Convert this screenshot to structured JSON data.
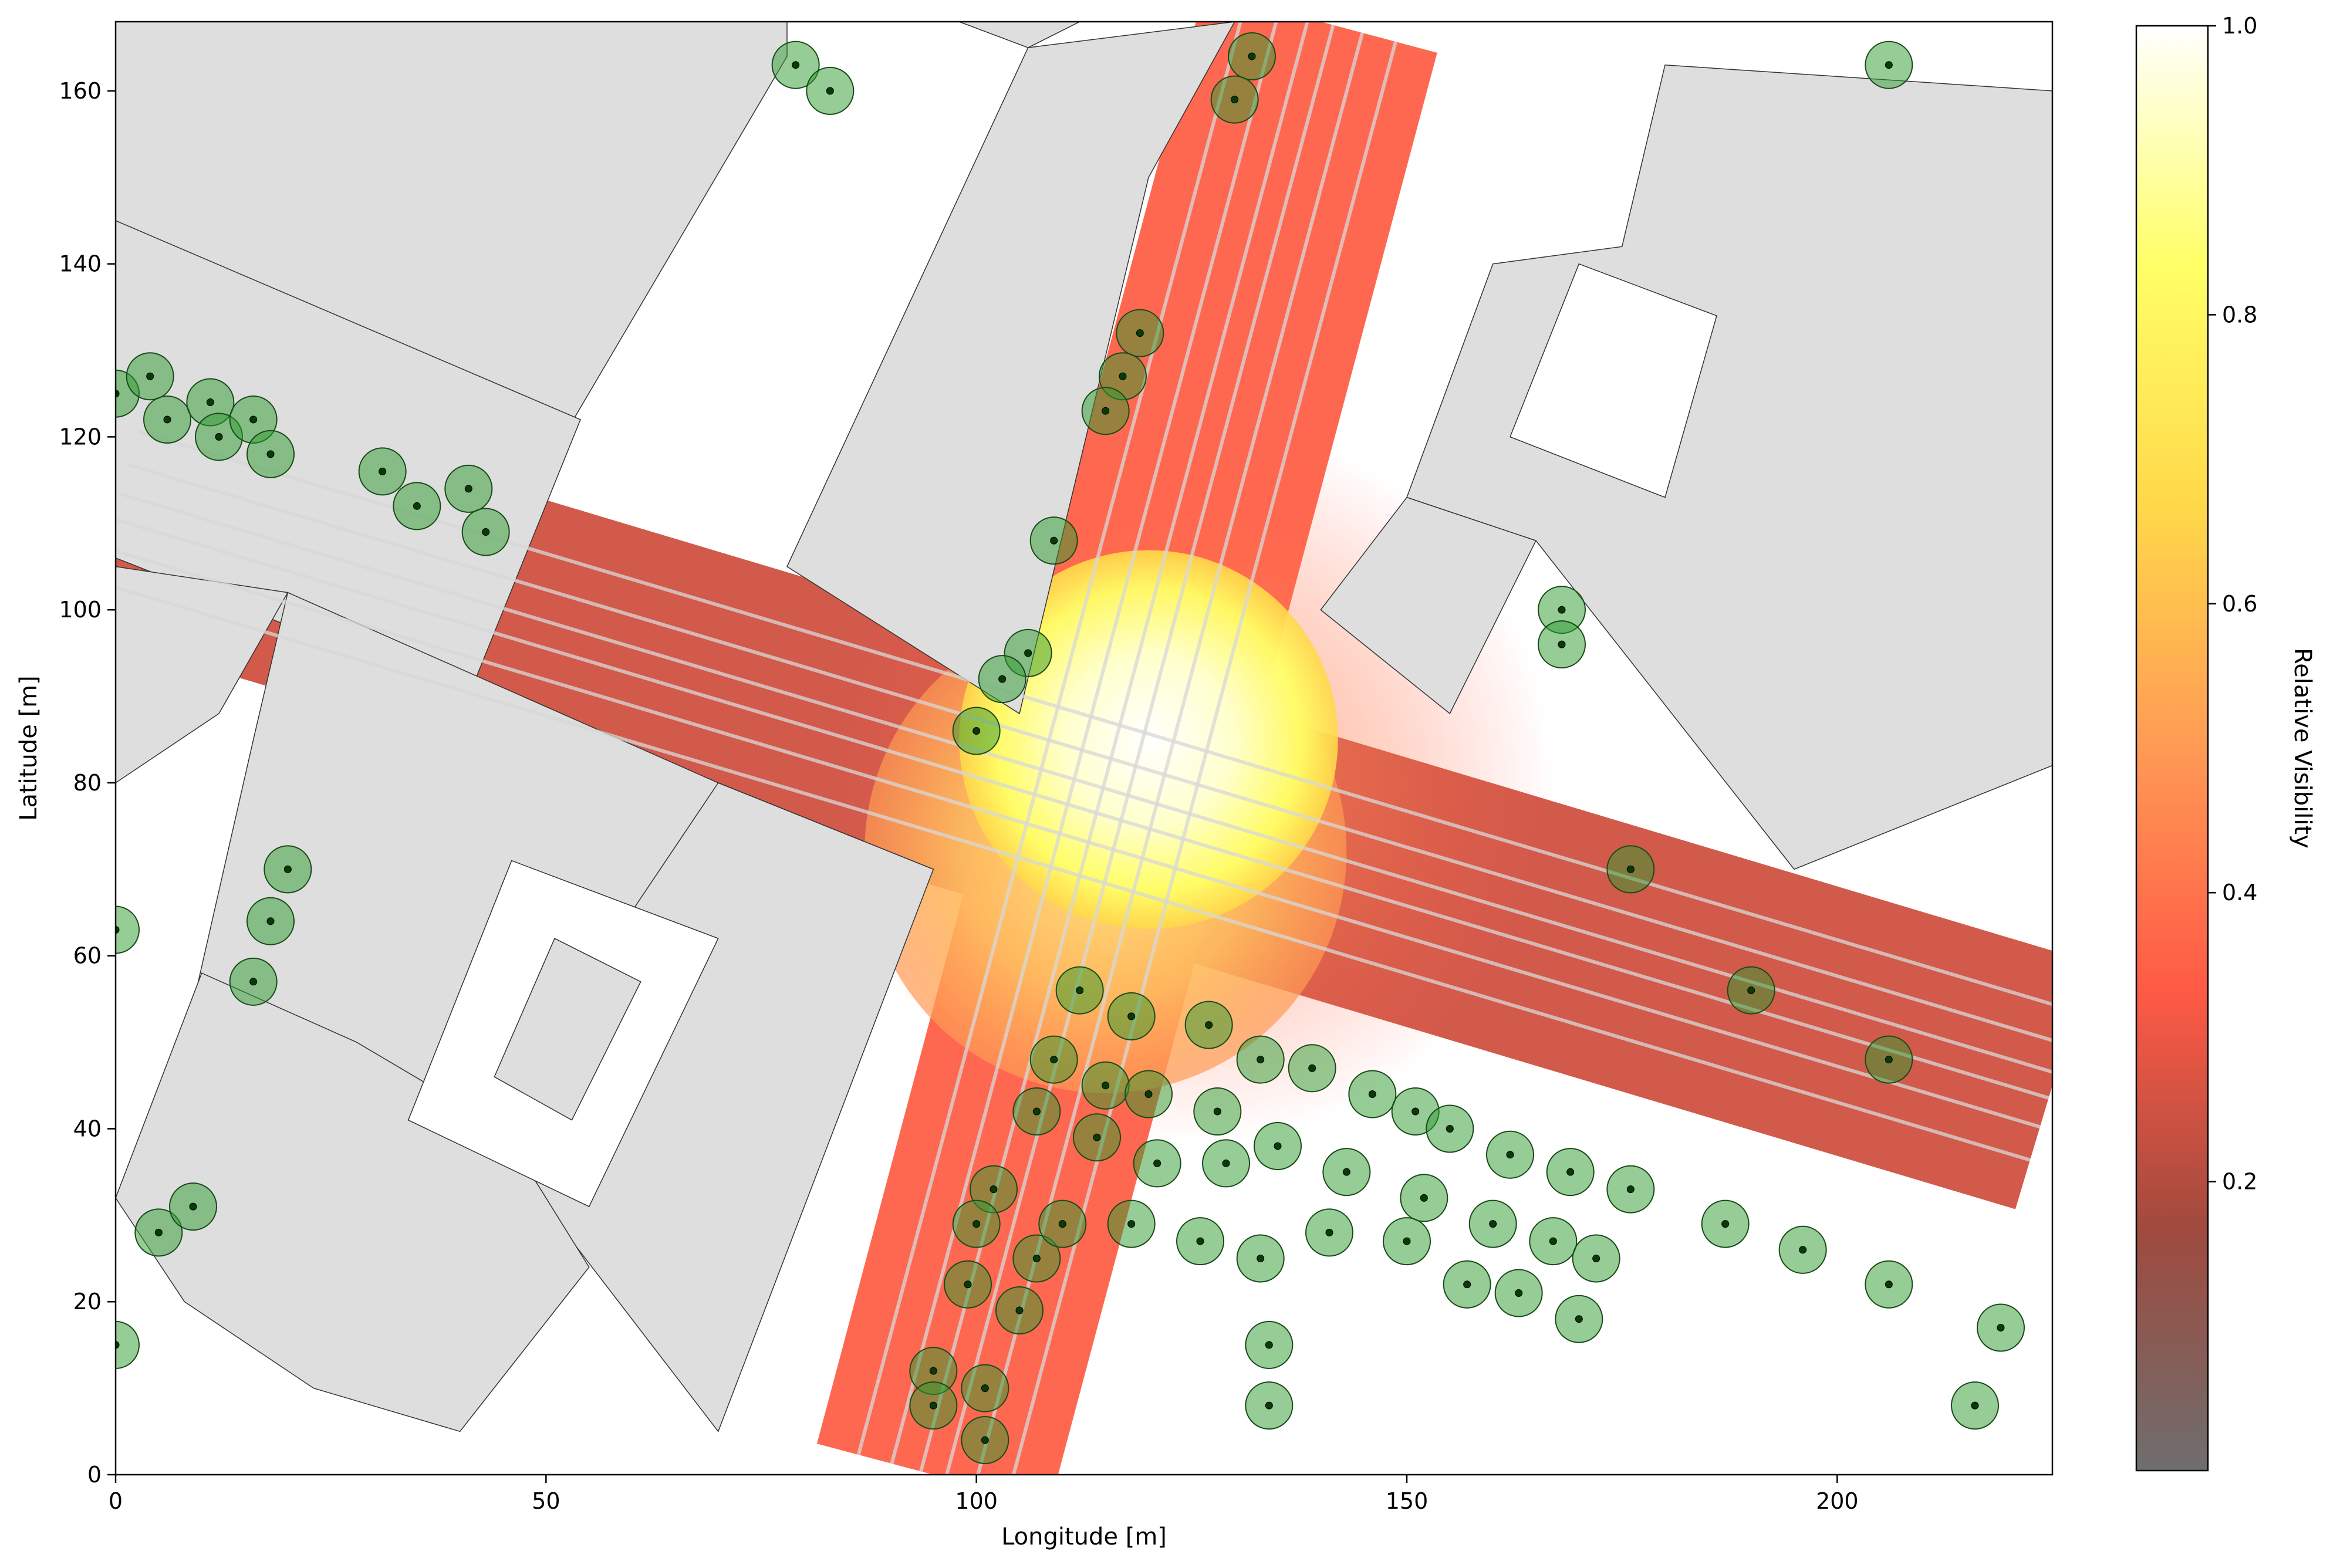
{
  "chart_data": {
    "type": "heatmap",
    "title": "",
    "xlabel": "Longitude [m]",
    "ylabel": "Latitude [m]",
    "xlim": [
      0,
      225
    ],
    "ylim": [
      0,
      168
    ],
    "xticks": [
      0,
      50,
      100,
      150,
      200
    ],
    "yticks": [
      0,
      20,
      40,
      60,
      80,
      100,
      120,
      140,
      160
    ],
    "colorbar": {
      "label": "Relative Visibility",
      "range": [
        0.0,
        1.0
      ],
      "ticks": [
        0.2,
        0.4,
        0.6,
        0.8,
        1.0
      ],
      "colormap": [
        "#6e6e6e",
        "#a04a3e",
        "#ff5a45",
        "#ff9a55",
        "#ffd84a",
        "#ffff66",
        "#ffffff"
      ]
    },
    "colors": {
      "building": "#dedede",
      "building_edge": "#333333",
      "lane_line": "#d8d8d8",
      "tree_fill": "#2e9a2e",
      "tree_dot": "#0a3a0a"
    },
    "visibility_field": {
      "streets": [
        {
          "name": "diagonal street",
          "centerline": [
            [
              0,
              112
            ],
            [
              225,
              45
            ]
          ],
          "half_width": 15,
          "visibility": 0.25
        },
        {
          "name": "crossing street",
          "centerline": [
            [
              95,
              0
            ],
            [
              140,
              168
            ]
          ],
          "half_width": 14,
          "visibility": 0.35
        }
      ],
      "hotspots": [
        {
          "center": [
            120,
            85
          ],
          "radius": 22,
          "visibility": 1.0
        },
        {
          "center": [
            115,
            72
          ],
          "radius": 28,
          "visibility": 0.85
        },
        {
          "center": [
            125,
            80
          ],
          "radius": 42,
          "visibility": 0.5
        }
      ]
    },
    "buildings": [
      {
        "name": "building-nw-large",
        "points": [
          [
            0,
            145
          ],
          [
            0,
            168
          ],
          [
            78,
            168
          ],
          [
            78,
            164
          ],
          [
            52,
            120
          ],
          [
            10,
            140
          ]
        ]
      },
      {
        "name": "building-nw-strip",
        "points": [
          [
            0,
            145
          ],
          [
            54,
            122
          ],
          [
            41,
            90
          ],
          [
            0,
            106
          ]
        ]
      },
      {
        "name": "building-north-center",
        "points": [
          [
            106,
            165
          ],
          [
            130,
            168
          ],
          [
            120,
            150
          ],
          [
            105,
            88
          ],
          [
            78,
            105
          ]
        ]
      },
      {
        "name": "building-north-small",
        "points": [
          [
            98,
            168
          ],
          [
            112,
            168
          ],
          [
            106,
            165
          ]
        ]
      },
      {
        "name": "building-ne",
        "points": [
          [
            180,
            163
          ],
          [
            225,
            160
          ],
          [
            225,
            82
          ],
          [
            195,
            70
          ],
          [
            165,
            108
          ],
          [
            150,
            113
          ],
          [
            160,
            140
          ],
          [
            175,
            142
          ]
        ]
      },
      {
        "name": "building-west",
        "points": [
          [
            0,
            105
          ],
          [
            0,
            80
          ],
          [
            12,
            88
          ],
          [
            20,
            102
          ]
        ]
      },
      {
        "name": "building-sw-block",
        "points": [
          [
            20,
            102
          ],
          [
            70,
            80
          ],
          [
            95,
            70
          ],
          [
            80,
            36
          ],
          [
            25,
            30
          ],
          [
            20,
            42
          ],
          [
            8,
            50
          ],
          [
            16,
            85
          ]
        ]
      },
      {
        "name": "building-south-center",
        "points": [
          [
            70,
            80
          ],
          [
            95,
            70
          ],
          [
            70,
            5
          ],
          [
            43,
            40
          ]
        ]
      },
      {
        "name": "building-sw-lower",
        "points": [
          [
            0,
            32
          ],
          [
            10,
            58
          ],
          [
            28,
            50
          ],
          [
            45,
            40
          ],
          [
            55,
            24
          ],
          [
            40,
            5
          ],
          [
            23,
            10
          ],
          [
            8,
            20
          ]
        ]
      },
      {
        "name": "building-se-notch",
        "points": [
          [
            140,
            100
          ],
          [
            150,
            113
          ],
          [
            165,
            108
          ],
          [
            155,
            88
          ]
        ]
      }
    ],
    "courtyards": [
      {
        "name": "courtyard-sw",
        "points": [
          [
            46,
            71
          ],
          [
            70,
            62
          ],
          [
            55,
            31
          ],
          [
            34,
            41
          ]
        ]
      },
      {
        "name": "courtyard-sw-inner",
        "points": [
          [
            51,
            62
          ],
          [
            61,
            57
          ],
          [
            53,
            41
          ],
          [
            44,
            46
          ]
        ]
      },
      {
        "name": "courtyard-ne",
        "points": [
          [
            170,
            140
          ],
          [
            186,
            134
          ],
          [
            180,
            113
          ],
          [
            162,
            120
          ]
        ]
      }
    ],
    "trees": [
      [
        79,
        163
      ],
      [
        83,
        160
      ],
      [
        132,
        164
      ],
      [
        130,
        159
      ],
      [
        119,
        132
      ],
      [
        117,
        127
      ],
      [
        115,
        123
      ],
      [
        109,
        108
      ],
      [
        106,
        95
      ],
      [
        103,
        92
      ],
      [
        100,
        86
      ],
      [
        0,
        125
      ],
      [
        4,
        127
      ],
      [
        6,
        122
      ],
      [
        11,
        124
      ],
      [
        12,
        120
      ],
      [
        16,
        122
      ],
      [
        18,
        118
      ],
      [
        31,
        116
      ],
      [
        35,
        112
      ],
      [
        41,
        114
      ],
      [
        43,
        109
      ],
      [
        20,
        70
      ],
      [
        18,
        64
      ],
      [
        16,
        57
      ],
      [
        0,
        63
      ],
      [
        5,
        28
      ],
      [
        9,
        31
      ],
      [
        0,
        15
      ],
      [
        112,
        56
      ],
      [
        118,
        53
      ],
      [
        127,
        52
      ],
      [
        109,
        48
      ],
      [
        115,
        45
      ],
      [
        120,
        44
      ],
      [
        128,
        42
      ],
      [
        133,
        48
      ],
      [
        139,
        47
      ],
      [
        107,
        42
      ],
      [
        114,
        39
      ],
      [
        121,
        36
      ],
      [
        129,
        36
      ],
      [
        135,
        38
      ],
      [
        143,
        35
      ],
      [
        146,
        44
      ],
      [
        151,
        42
      ],
      [
        155,
        40
      ],
      [
        152,
        32
      ],
      [
        162,
        37
      ],
      [
        160,
        29
      ],
      [
        102,
        33
      ],
      [
        100,
        29
      ],
      [
        107,
        25
      ],
      [
        110,
        29
      ],
      [
        118,
        29
      ],
      [
        99,
        22
      ],
      [
        105,
        19
      ],
      [
        95,
        12
      ],
      [
        95,
        8
      ],
      [
        101,
        10
      ],
      [
        101,
        4
      ],
      [
        126,
        27
      ],
      [
        133,
        25
      ],
      [
        141,
        28
      ],
      [
        150,
        27
      ],
      [
        157,
        22
      ],
      [
        163,
        21
      ],
      [
        167,
        27
      ],
      [
        169,
        35
      ],
      [
        172,
        25
      ],
      [
        176,
        33
      ],
      [
        170,
        18
      ],
      [
        134,
        15
      ],
      [
        134,
        8
      ],
      [
        168,
        100
      ],
      [
        168,
        96
      ],
      [
        176,
        70
      ],
      [
        190,
        56
      ],
      [
        206,
        48
      ],
      [
        187,
        29
      ],
      [
        196,
        26
      ],
      [
        206,
        22
      ],
      [
        219,
        17
      ],
      [
        216,
        8
      ],
      [
        206,
        163
      ]
    ]
  }
}
